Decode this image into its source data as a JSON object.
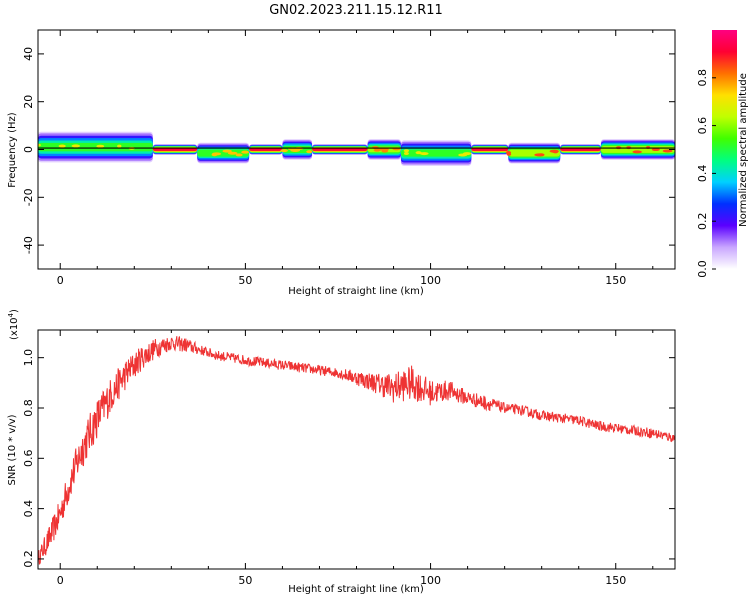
{
  "title": "GN02.2023.211.15.12.R11",
  "chart_data": [
    {
      "type": "heatmap",
      "name": "spectrogram",
      "xlabel": "Height of straight line (km)",
      "ylabel": "Frequency (Hz)",
      "xlim": [
        -6,
        166
      ],
      "ylim": [
        -50,
        50
      ],
      "x_ticks": [
        0,
        50,
        100,
        150
      ],
      "x_tick_labels": [
        "0",
        "50",
        "100",
        "150"
      ],
      "y_ticks": [
        -40,
        -20,
        0,
        20,
        40
      ],
      "y_tick_labels": [
        "-40",
        "-20",
        "0",
        "20",
        "40"
      ],
      "colorbar": {
        "label": "Normalized spectral amplitude",
        "range": [
          0,
          1
        ],
        "ticks": [
          0.0,
          0.2,
          0.4,
          0.6,
          0.8
        ],
        "tick_labels": [
          "0.0",
          "0.2",
          "0.4",
          "0.6",
          "0.8"
        ],
        "colors": [
          "#ffffff",
          "#c9a6ff",
          "#5a00ff",
          "#0030ff",
          "#00d0ff",
          "#00ff80",
          "#40ff00",
          "#c0ff00",
          "#ffe000",
          "#ff7000",
          "#ff0033",
          "#ff0080"
        ]
      },
      "band": {
        "center_hz": 0,
        "segments": [
          {
            "x": [
              -6,
              25
            ],
            "offset_hz": 1,
            "half_width_hz": 6,
            "peak": 0.55
          },
          {
            "x": [
              25,
              37
            ],
            "offset_hz": 0,
            "half_width_hz": 2,
            "peak": 0.95
          },
          {
            "x": [
              37,
              51
            ],
            "offset_hz": -1.5,
            "half_width_hz": 4,
            "peak": 0.6
          },
          {
            "x": [
              51,
              60
            ],
            "offset_hz": 0,
            "half_width_hz": 2,
            "peak": 0.95
          },
          {
            "x": [
              60,
              68
            ],
            "offset_hz": 0,
            "half_width_hz": 4,
            "peak": 0.6
          },
          {
            "x": [
              68,
              83
            ],
            "offset_hz": 0,
            "half_width_hz": 2,
            "peak": 0.95
          },
          {
            "x": [
              83,
              92
            ],
            "offset_hz": 0,
            "half_width_hz": 4,
            "peak": 0.65
          },
          {
            "x": [
              92,
              111
            ],
            "offset_hz": -1.5,
            "half_width_hz": 5,
            "peak": 0.55
          },
          {
            "x": [
              111,
              121
            ],
            "offset_hz": 0,
            "half_width_hz": 2,
            "peak": 0.95
          },
          {
            "x": [
              121,
              135
            ],
            "offset_hz": -1.5,
            "half_width_hz": 4,
            "peak": 0.7
          },
          {
            "x": [
              135,
              146
            ],
            "offset_hz": 0,
            "half_width_hz": 2,
            "peak": 0.95
          },
          {
            "x": [
              146,
              166
            ],
            "offset_hz": 0,
            "half_width_hz": 4,
            "peak": 0.7
          }
        ]
      }
    },
    {
      "type": "line",
      "name": "snr",
      "xlabel": "Height of straight line (km)",
      "ylabel": "SNR (10 * v/v)",
      "multiplier_label": "(x10",
      "multiplier_exponent": "4",
      "multiplier_close": ")",
      "xlim": [
        -6,
        166
      ],
      "ylim": [
        0.16,
        1.11
      ],
      "x_ticks": [
        0,
        50,
        100,
        150
      ],
      "x_tick_labels": [
        "0",
        "50",
        "100",
        "150"
      ],
      "y_ticks": [
        0.2,
        0.4,
        0.6,
        0.8,
        1.0
      ],
      "y_tick_labels": [
        "0.2",
        "0.4",
        "0.6",
        "0.8",
        "1.0"
      ],
      "series": [
        {
          "color": "#ee3333",
          "x": [
            -6,
            -3,
            0,
            3,
            6,
            10,
            14,
            18,
            22,
            26,
            30,
            34,
            38,
            42,
            46,
            50,
            55,
            60,
            65,
            70,
            75,
            80,
            85,
            90,
            95,
            100,
            105,
            110,
            115,
            120,
            125,
            130,
            135,
            140,
            145,
            150,
            155,
            160,
            166
          ],
          "y": [
            0.2,
            0.28,
            0.38,
            0.52,
            0.64,
            0.76,
            0.86,
            0.94,
            1.0,
            1.04,
            1.06,
            1.05,
            1.03,
            1.01,
            1.0,
            0.99,
            0.98,
            0.97,
            0.96,
            0.95,
            0.94,
            0.92,
            0.9,
            0.88,
            0.9,
            0.86,
            0.87,
            0.84,
            0.82,
            0.8,
            0.79,
            0.77,
            0.76,
            0.75,
            0.73,
            0.72,
            0.71,
            0.7,
            0.68
          ],
          "noise_amplitude": [
            0.03,
            0.05,
            0.06,
            0.07,
            0.08,
            0.08,
            0.07,
            0.06,
            0.05,
            0.04,
            0.03,
            0.03,
            0.02,
            0.02,
            0.02,
            0.02,
            0.02,
            0.02,
            0.02,
            0.02,
            0.02,
            0.03,
            0.04,
            0.06,
            0.07,
            0.05,
            0.04,
            0.03,
            0.03,
            0.02,
            0.02,
            0.02,
            0.02,
            0.02,
            0.02,
            0.02,
            0.02,
            0.02,
            0.02
          ]
        }
      ]
    }
  ]
}
